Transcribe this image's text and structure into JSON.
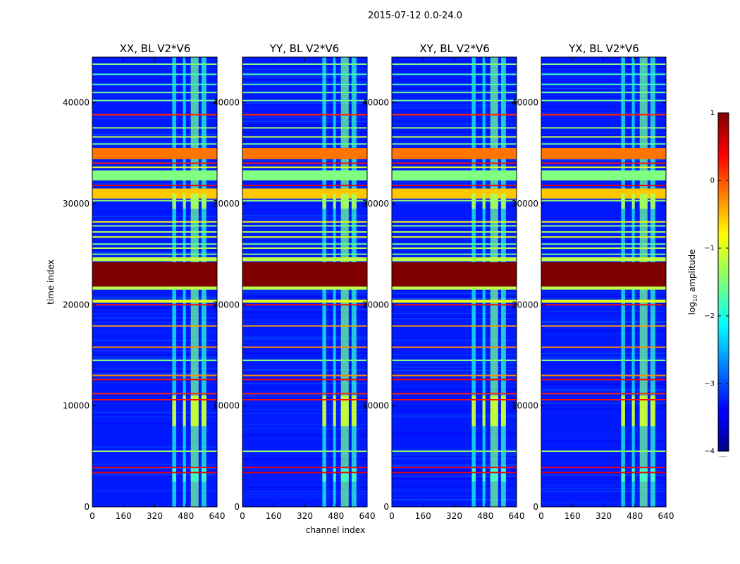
{
  "chart_data": {
    "type": "heatmap",
    "suptitle": "2015-07-12 0.0-24.0",
    "xlabel": "channel index",
    "ylabel": "time index",
    "xlim": [
      0,
      640
    ],
    "ylim": [
      0,
      44500
    ],
    "x_ticks": [
      0,
      160,
      320,
      480,
      640
    ],
    "y_ticks": [
      0,
      10000,
      20000,
      30000,
      40000
    ],
    "colormap": "jet",
    "colorbar": {
      "label_prefix": "log",
      "label_sub": "10",
      "label_suffix": " amplitude",
      "min": -4,
      "max": 1,
      "ticks": [
        1,
        0,
        -1,
        -2,
        -3,
        -4
      ],
      "tick_labels": [
        "1",
        "0",
        "−1",
        "−2",
        "−3",
        "−4"
      ],
      "extend_label": "......"
    },
    "panels": [
      {
        "title": "XX, BL V2*V6",
        "pol": "XX"
      },
      {
        "title": "YY, BL V2*V6",
        "pol": "YY"
      },
      {
        "title": "XY, BL V2*V6",
        "pol": "XY"
      },
      {
        "title": "YX, BL V2*V6",
        "pol": "YX"
      }
    ],
    "rfi_channel_columns": [
      {
        "start": 410,
        "end": 430,
        "level": -2.0
      },
      {
        "start": 465,
        "end": 480,
        "level": -2.1
      },
      {
        "start": 505,
        "end": 545,
        "level": -1.6
      },
      {
        "start": 560,
        "end": 585,
        "level": -1.9
      }
    ],
    "time_bands": [
      {
        "t_start": 21800,
        "t_end": 24200,
        "level": 1.0,
        "type": "full"
      },
      {
        "t_start": 32300,
        "t_end": 33300,
        "level": -1.5,
        "type": "full"
      },
      {
        "t_start": 30500,
        "t_end": 31500,
        "level": -0.6,
        "type": "full"
      },
      {
        "t_start": 34400,
        "t_end": 35500,
        "level": -0.2,
        "type": "full"
      },
      {
        "t_start": 20200,
        "t_end": 20500,
        "level": -1.0,
        "type": "full"
      },
      {
        "t_start": 21500,
        "t_end": 21800,
        "level": -1.2,
        "type": "full"
      },
      {
        "t_start": 24300,
        "t_end": 24700,
        "level": -1.2,
        "type": "full"
      },
      {
        "t_start": 29500,
        "t_end": 31000,
        "level": -1.3,
        "type": "rfi_only"
      },
      {
        "t_start": 8000,
        "t_end": 11000,
        "level": -1.1,
        "type": "rfi_only"
      },
      {
        "t_start": 2500,
        "t_end": 3800,
        "level": -1.8,
        "type": "rfi_only"
      }
    ],
    "time_lines": [
      {
        "t": 43800,
        "level": -1.5
      },
      {
        "t": 42800,
        "level": -1.8
      },
      {
        "t": 41800,
        "level": -1.8
      },
      {
        "t": 41000,
        "level": -1.6
      },
      {
        "t": 40200,
        "level": -1.6
      },
      {
        "t": 38800,
        "level": 0.2
      },
      {
        "t": 37500,
        "level": -1.4
      },
      {
        "t": 36600,
        "level": -1.2
      },
      {
        "t": 35900,
        "level": -1.6
      },
      {
        "t": 34000,
        "level": 0.3
      },
      {
        "t": 33600,
        "level": -1.0
      },
      {
        "t": 31800,
        "level": 0.5
      },
      {
        "t": 30300,
        "level": -1.4
      },
      {
        "t": 28200,
        "level": -0.9
      },
      {
        "t": 27800,
        "level": -1.5
      },
      {
        "t": 27200,
        "level": -1.3
      },
      {
        "t": 26700,
        "level": -1.0
      },
      {
        "t": 26000,
        "level": -1.6
      },
      {
        "t": 25600,
        "level": -1.2
      },
      {
        "t": 25000,
        "level": -1.6
      },
      {
        "t": 20000,
        "level": 0.3
      },
      {
        "t": 17900,
        "level": -0.4
      },
      {
        "t": 15800,
        "level": -0.3
      },
      {
        "t": 14500,
        "level": -1.5
      },
      {
        "t": 13000,
        "level": -0.3
      },
      {
        "t": 12600,
        "level": 0.4
      },
      {
        "t": 11200,
        "level": 0.2
      },
      {
        "t": 10600,
        "level": 0.3
      },
      {
        "t": 5500,
        "level": -1.4
      },
      {
        "t": 3900,
        "level": 0.4
      },
      {
        "t": 3400,
        "level": 0.5
      }
    ]
  }
}
